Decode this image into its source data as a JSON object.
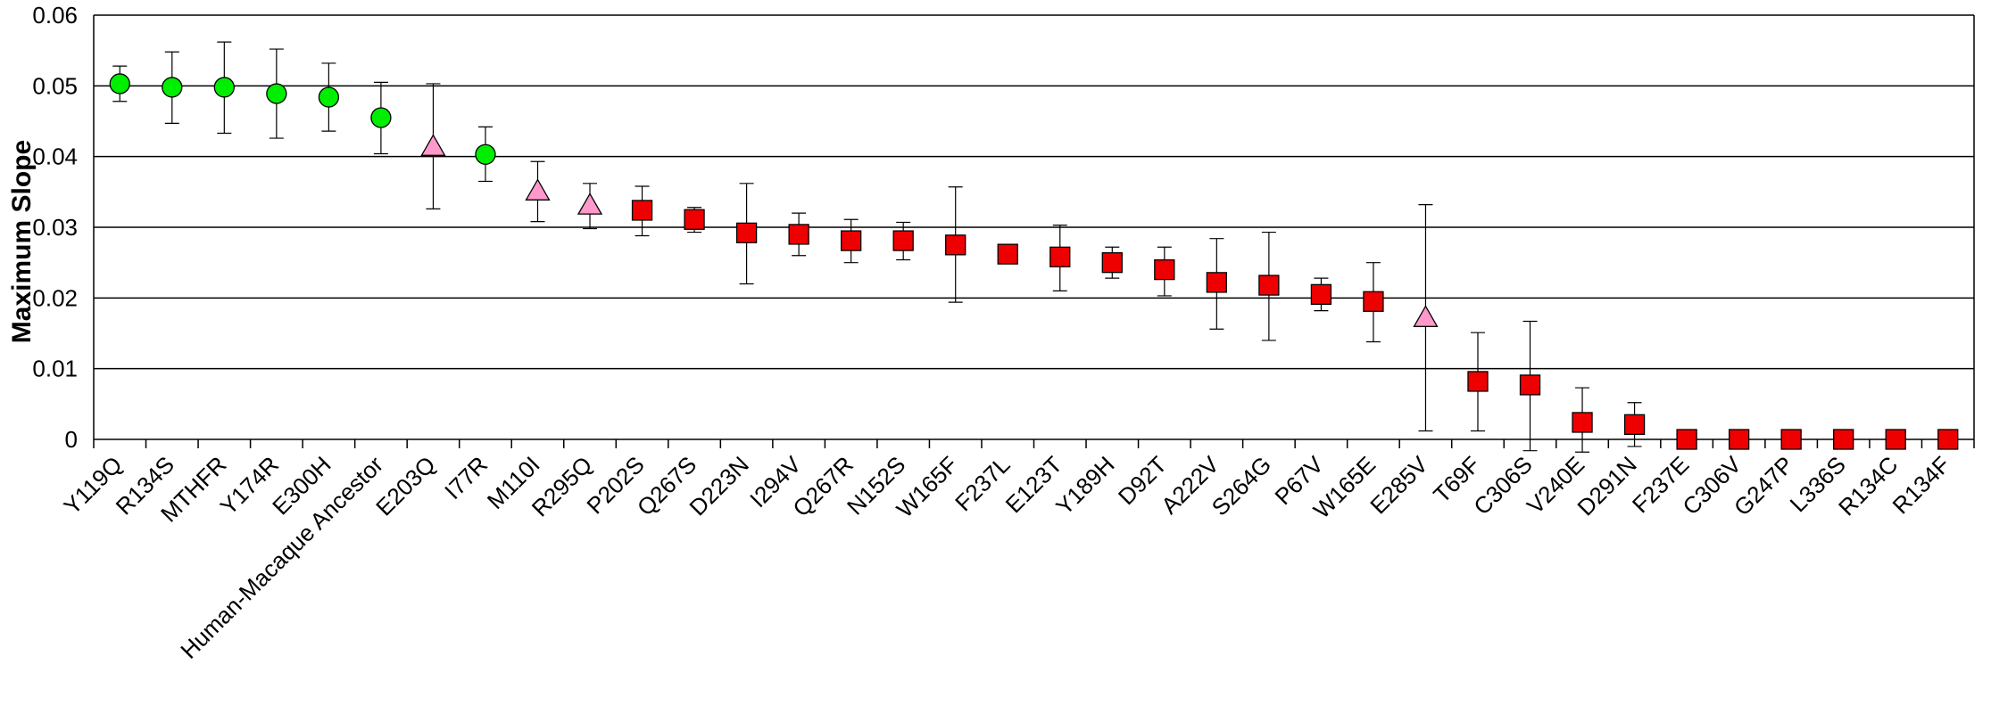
{
  "chart_data": {
    "type": "scatter",
    "title": "",
    "xlabel": "",
    "ylabel": "Maximum Slope",
    "ylim": [
      0,
      0.06
    ],
    "yticks": [
      "0",
      "0.01",
      "0.02",
      "0.03",
      "0.04",
      "0.05",
      "0.06"
    ],
    "grid": true,
    "legend": "none",
    "marker_colors": {
      "circle": "#00ee00",
      "triangle": "#ff99cc",
      "square": "#ee0000"
    },
    "categories": [
      "Y119Q",
      "R134S",
      "MTHFR",
      "Y174R",
      "E300H",
      "Human-Macaque Ancestor",
      "E203Q",
      "I77R",
      "M110I",
      "R295Q",
      "P202S",
      "Q267S",
      "D223N",
      "I294V",
      "Q267R",
      "N152S",
      "W165F",
      "F237L",
      "E123T",
      "Y189H",
      "D92T",
      "A222V",
      "S264G",
      "P67V",
      "W165E",
      "E285V",
      "T69F",
      "C306S",
      "V240E",
      "D291N",
      "F237E",
      "C306V",
      "G247P",
      "L336S",
      "R134C",
      "R134F"
    ],
    "values": [
      0.0503,
      0.0498,
      0.0498,
      0.0489,
      0.0484,
      0.0455,
      0.0414,
      0.0403,
      0.0351,
      0.0331,
      0.0324,
      0.0311,
      0.0292,
      0.029,
      0.0281,
      0.0281,
      0.0275,
      0.0262,
      0.0258,
      0.025,
      0.024,
      0.0222,
      0.0218,
      0.0205,
      0.0195,
      0.0172,
      0.0082,
      0.0077,
      0.0024,
      0.0021,
      0.0,
      0.0,
      0.0,
      0.0,
      0.0,
      0.0
    ],
    "errors_upper": [
      0.0528,
      0.0548,
      0.0562,
      0.0552,
      0.0532,
      0.0505,
      0.0503,
      0.0442,
      0.0393,
      0.0362,
      0.0358,
      0.0328,
      0.0362,
      0.032,
      0.0311,
      0.0307,
      0.0357,
      0.0262,
      0.0303,
      0.0272,
      0.0272,
      0.0284,
      0.0293,
      0.0228,
      0.025,
      0.0332,
      0.0151,
      0.0167,
      0.0073,
      0.0052,
      0.0,
      0.0,
      0.0,
      0.0,
      0.0,
      0.0
    ],
    "errors_lower": [
      0.0478,
      0.0447,
      0.0433,
      0.0426,
      0.0436,
      0.0404,
      0.0326,
      0.0365,
      0.0308,
      0.0298,
      0.0288,
      0.0293,
      0.022,
      0.026,
      0.025,
      0.0254,
      0.0194,
      0.0262,
      0.021,
      0.0228,
      0.0203,
      0.0156,
      0.014,
      0.0182,
      0.0138,
      0.0012,
      0.0012,
      -0.0016,
      -0.0018,
      -0.001,
      0.0,
      0.0,
      0.0,
      0.0,
      0.0,
      0.0
    ],
    "markers": [
      "circle",
      "circle",
      "circle",
      "circle",
      "circle",
      "circle",
      "triangle",
      "circle",
      "triangle",
      "triangle",
      "square",
      "square",
      "square",
      "square",
      "square",
      "square",
      "square",
      "square",
      "square",
      "square",
      "square",
      "square",
      "square",
      "square",
      "square",
      "triangle",
      "square",
      "square",
      "square",
      "square",
      "square",
      "square",
      "square",
      "square",
      "square",
      "square"
    ]
  }
}
